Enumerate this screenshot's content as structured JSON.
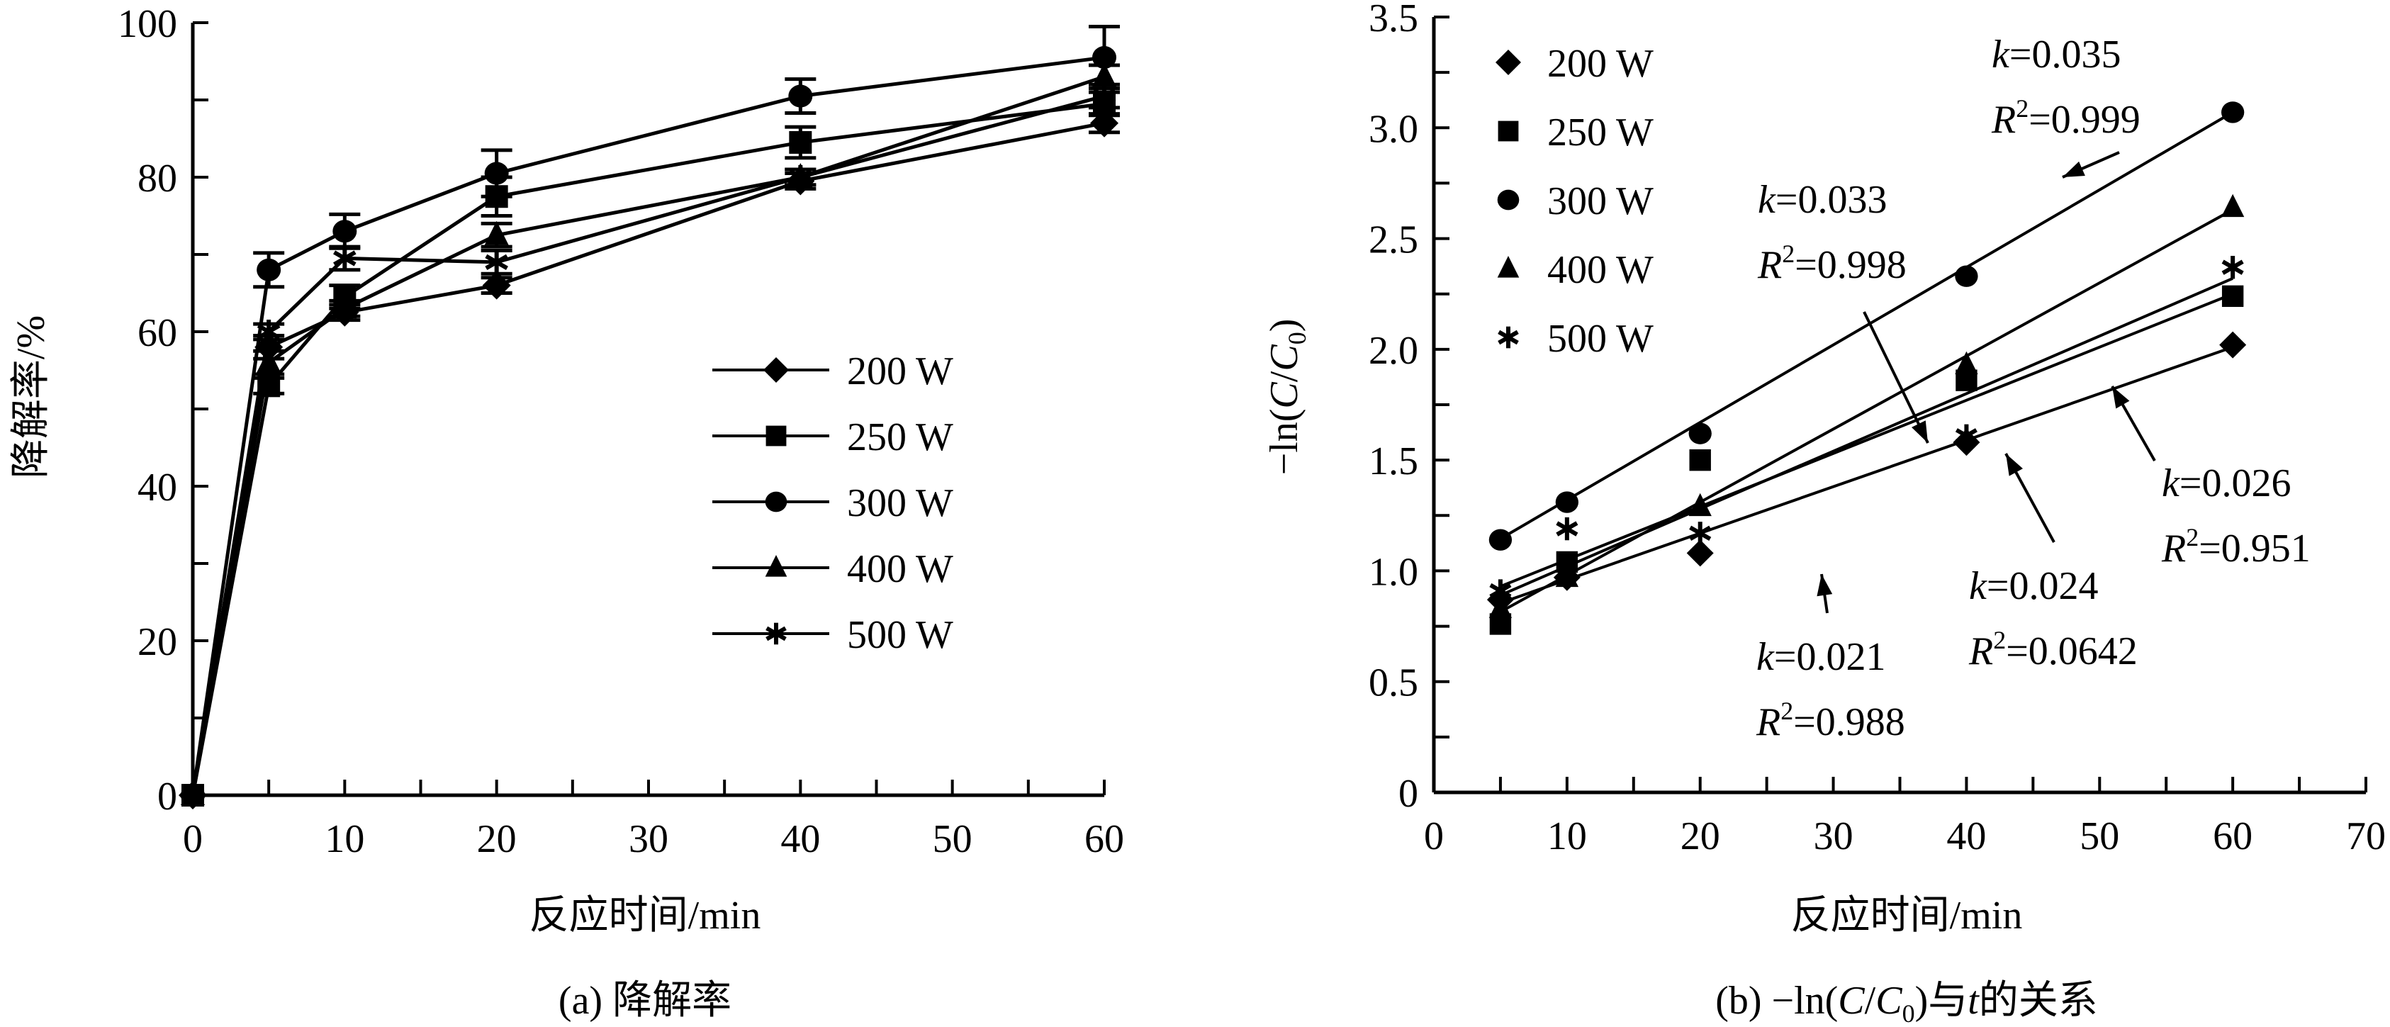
{
  "chart_data": [
    {
      "id": "a",
      "type": "line",
      "title": "",
      "caption": "(a) 降解率",
      "xlabel": "反应时间/min",
      "ylabel": "降解率/%",
      "xlim": [
        0,
        60
      ],
      "ylim": [
        0,
        100
      ],
      "xticks": [
        0,
        10,
        20,
        30,
        40,
        50,
        60
      ],
      "yticks": [
        0,
        20,
        40,
        60,
        80,
        100
      ],
      "grid": false,
      "legend_position": "center-right",
      "x": [
        0,
        5,
        10,
        20,
        40,
        60
      ],
      "series": [
        {
          "name": "200 W",
          "marker": "diamond",
          "values": [
            0,
            58,
            62.5,
            66,
            79.5,
            87
          ],
          "errors": [
            0,
            1.5,
            1.0,
            1.0,
            1.0,
            1.2
          ]
        },
        {
          "name": "250 W",
          "marker": "square",
          "values": [
            0,
            53,
            64.5,
            77.5,
            84.5,
            89.5
          ],
          "errors": [
            0,
            1.0,
            1.5,
            2.5,
            2.0,
            1.5
          ]
        },
        {
          "name": "300 W",
          "marker": "circle",
          "values": [
            0,
            68,
            73,
            80.5,
            90.5,
            95.5
          ],
          "errors": [
            0,
            2.2,
            2.2,
            3.0,
            2.2,
            4.0
          ]
        },
        {
          "name": "400 W",
          "marker": "triangle",
          "values": [
            0,
            56,
            63,
            72.5,
            80,
            93
          ],
          "errors": [
            0,
            1.5,
            1.0,
            1.5,
            1.0,
            1.5
          ]
        },
        {
          "name": "500 W",
          "marker": "asterisk",
          "values": [
            0,
            60,
            69.5,
            69,
            80,
            90.5
          ],
          "errors": [
            0,
            1.0,
            1.5,
            1.5,
            1.0,
            1.5
          ]
        }
      ]
    },
    {
      "id": "b",
      "type": "scatter",
      "title": "",
      "caption_prefix": "(b) −ln(",
      "caption_C": "C",
      "caption_slash": "/",
      "caption_C0": "C",
      "caption_sub0": "0",
      "caption_mid": ")与",
      "caption_t": "t",
      "caption_suffix": "的关系",
      "xlabel": "反应时间/min",
      "ylabel_prefix": "−ln(",
      "ylabel_C": "C",
      "ylabel_slash": "/",
      "ylabel_sub": "0",
      "ylabel_suffix": ")",
      "xlim": [
        0,
        70
      ],
      "ylim": [
        0,
        3.5
      ],
      "xticks": [
        0,
        10,
        20,
        30,
        40,
        50,
        60,
        70
      ],
      "yticks": [
        0,
        0.5,
        1.0,
        1.5,
        2.0,
        2.5,
        3.0,
        3.5
      ],
      "ytick_labels": [
        "0",
        "0.5",
        "1.0",
        "1.5",
        "2.0",
        "2.5",
        "3.0",
        "3.5"
      ],
      "grid": false,
      "legend_position": "top-left",
      "x": [
        5,
        10,
        20,
        40,
        60
      ],
      "series": [
        {
          "name": "200 W",
          "marker": "diamond",
          "values": [
            0.87,
            0.97,
            1.08,
            1.58,
            2.02
          ],
          "fit": {
            "k": 0.021,
            "intercept": 0.75,
            "x_range": [
              5,
              60
            ],
            "label_k": "=0.021",
            "label_r2": "=0.988"
          }
        },
        {
          "name": "250 W",
          "marker": "square",
          "values": [
            0.76,
            1.04,
            1.5,
            1.86,
            2.24
          ],
          "fit": {
            "k": 0.024,
            "intercept": 0.81,
            "x_range": [
              5,
              60
            ],
            "label_k": "=0.024",
            "label_r2": "=0.0642"
          }
        },
        {
          "name": "300 W",
          "marker": "circle",
          "values": [
            1.14,
            1.31,
            1.62,
            2.33,
            3.07
          ],
          "fit": {
            "k": 0.035,
            "intercept": 0.97,
            "x_range": [
              5,
              60
            ],
            "label_k": "=0.035",
            "label_r2": "=0.999"
          }
        },
        {
          "name": "400 W",
          "marker": "triangle",
          "values": [
            0.83,
            0.97,
            1.29,
            1.93,
            2.64
          ],
          "fit": {
            "k": 0.033,
            "intercept": 0.65,
            "x_range": [
              5,
              60
            ],
            "label_k": "=0.033",
            "label_r2": "=0.998"
          }
        },
        {
          "name": "500 W",
          "marker": "asterisk",
          "values": [
            0.91,
            1.19,
            1.17,
            1.61,
            2.37
          ],
          "fit": {
            "k": 0.026,
            "intercept": 0.76,
            "x_range": [
              5,
              60
            ],
            "label_k": "=0.026",
            "label_r2": "=0.951"
          }
        }
      ],
      "annotations": [
        {
          "series": "300 W",
          "k_text": "=0.035",
          "r2_text": "=0.999",
          "arrow_to_x": 50
        },
        {
          "series": "400 W",
          "k_text": "=0.033",
          "r2_text": "=0.998",
          "arrow_to_x": 37.5
        },
        {
          "series": "500 W",
          "k_text": "=0.026",
          "r2_text": "=0.951",
          "arrow_to_x": 50.5
        },
        {
          "series": "250 W",
          "k_text": "=0.024",
          "r2_text": "=0.0642",
          "arrow_to_x": 43
        },
        {
          "series": "200 W",
          "k_text": "=0.021",
          "r2_text": "=0.988",
          "arrow_to_x": 29.5
        }
      ],
      "k_symbol": "k",
      "r_symbol": "R",
      "r_sup": "2"
    }
  ]
}
